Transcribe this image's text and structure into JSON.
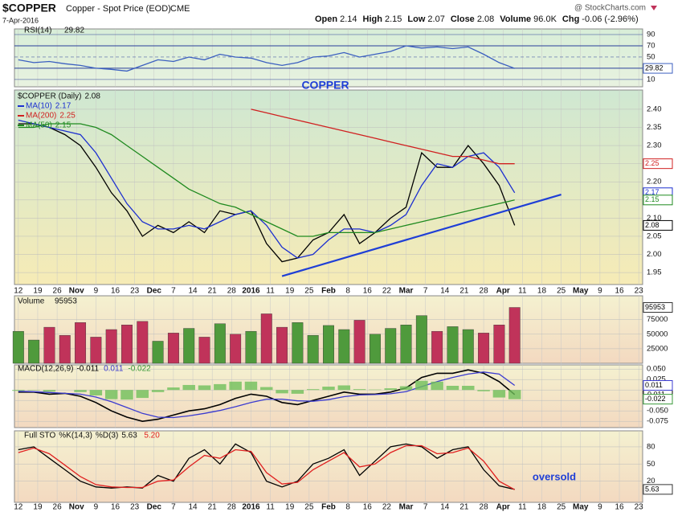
{
  "header": {
    "symbol": "$COPPER",
    "description": "Copper - Spot Price (EOD)",
    "exchange": "CME",
    "source": "@ StockCharts.com",
    "date": "7-Apr-2016",
    "quote": [
      {
        "label": "Open",
        "value": "2.14"
      },
      {
        "label": "High",
        "value": "2.15"
      },
      {
        "label": "Low",
        "value": "2.07"
      },
      {
        "label": "Close",
        "value": "2.08"
      },
      {
        "label": "Volume",
        "value": "96.0K"
      },
      {
        "label": "Chg",
        "value": "-0.06 (-2.96%)"
      }
    ]
  },
  "x_axis": {
    "x": [
      0,
      4,
      8,
      12,
      16,
      20,
      24,
      28,
      32,
      36,
      40,
      44,
      48,
      52,
      56,
      60,
      64,
      68,
      72,
      76,
      80,
      84,
      88,
      92,
      96,
      100,
      104,
      108,
      112,
      116,
      120,
      124,
      128
    ],
    "xlim": [
      -1,
      161
    ],
    "xticks": [
      {
        "value": 0,
        "label": "12"
      },
      {
        "value": 5,
        "label": "19"
      },
      {
        "value": 10,
        "label": "26"
      },
      {
        "value": 15,
        "label": "Nov"
      },
      {
        "value": 20,
        "label": "9"
      },
      {
        "value": 25,
        "label": "16"
      },
      {
        "value": 30,
        "label": "23"
      },
      {
        "value": 35,
        "label": "Dec"
      },
      {
        "value": 40,
        "label": "7"
      },
      {
        "value": 45,
        "label": "14"
      },
      {
        "value": 50,
        "label": "21"
      },
      {
        "value": 55,
        "label": "28"
      },
      {
        "value": 60,
        "label": "2016"
      },
      {
        "value": 65,
        "label": "11"
      },
      {
        "value": 70,
        "label": "19"
      },
      {
        "value": 75,
        "label": "25"
      },
      {
        "value": 80,
        "label": "Feb"
      },
      {
        "value": 85,
        "label": "8"
      },
      {
        "value": 90,
        "label": "16"
      },
      {
        "value": 95,
        "label": "22"
      },
      {
        "value": 100,
        "label": "Mar"
      },
      {
        "value": 105,
        "label": "7"
      },
      {
        "value": 110,
        "label": "14"
      },
      {
        "value": 115,
        "label": "21"
      },
      {
        "value": 120,
        "label": "28"
      },
      {
        "value": 125,
        "label": "Apr"
      },
      {
        "value": 130,
        "label": "11"
      },
      {
        "value": 135,
        "label": "18"
      },
      {
        "value": 140,
        "label": "25"
      },
      {
        "value": 145,
        "label": "May"
      },
      {
        "value": 150,
        "label": "9"
      },
      {
        "value": 155,
        "label": "16"
      },
      {
        "value": 160,
        "label": "23"
      }
    ]
  },
  "chart_data": [
    {
      "type": "line",
      "ylim": [
        -3,
        100
      ],
      "yticks": [
        90,
        70,
        50,
        30,
        10
      ],
      "series": [
        {
          "name": "RSI(14)",
          "color": "#3b5fc0",
          "values": [
            45,
            40,
            42,
            38,
            35,
            30,
            28,
            25,
            35,
            45,
            42,
            50,
            45,
            55,
            50,
            48,
            40,
            35,
            40,
            50,
            52,
            58,
            50,
            55,
            60,
            70,
            66,
            68,
            65,
            68,
            55,
            40,
            29.82
          ]
        }
      ]
    },
    {
      "type": "line",
      "title": "COPPER",
      "ylim": [
        1.917,
        2.453
      ],
      "yticks": [
        {
          "value": 1.95,
          "label": "1.95"
        },
        {
          "value": 2,
          "label": "2.00"
        },
        {
          "value": 2.05,
          "label": "2.05"
        },
        {
          "value": 2.1,
          "label": "2.10"
        },
        {
          "value": 2.15,
          "label": "2.15"
        },
        {
          "value": 2.2,
          "label": "2.20"
        },
        {
          "value": 2.25,
          "label": "2.25"
        },
        {
          "value": 2.3,
          "label": "2.30"
        },
        {
          "value": 2.35,
          "label": "2.35"
        },
        {
          "value": 2.4,
          "label": "2.40"
        }
      ],
      "series": [
        {
          "name": "$COPPER (Daily)",
          "color": "#000000",
          "values": [
            2.36,
            2.36,
            2.35,
            2.33,
            2.3,
            2.24,
            2.17,
            2.12,
            2.05,
            2.08,
            2.06,
            2.09,
            2.06,
            2.12,
            2.11,
            2.12,
            2.03,
            1.98,
            1.99,
            2.04,
            2.06,
            2.11,
            2.03,
            2.06,
            2.1,
            2.13,
            2.28,
            2.24,
            2.24,
            2.3,
            2.25,
            2.19,
            2.08
          ]
        },
        {
          "name": "MA(10)",
          "color": "#1c2fd0",
          "values": [
            2.37,
            2.36,
            2.35,
            2.34,
            2.33,
            2.28,
            2.21,
            2.14,
            2.09,
            2.07,
            2.07,
            2.08,
            2.07,
            2.09,
            2.11,
            2.12,
            2.08,
            2.02,
            1.99,
            2,
            2.04,
            2.07,
            2.07,
            2.06,
            2.08,
            2.11,
            2.19,
            2.25,
            2.24,
            2.27,
            2.28,
            2.24,
            2.17
          ]
        },
        {
          "name": "MA(200)",
          "color": "#d02020",
          "values": [
            null,
            null,
            null,
            null,
            null,
            null,
            null,
            null,
            null,
            null,
            null,
            null,
            null,
            null,
            null,
            2.4,
            2.39,
            2.38,
            2.37,
            2.36,
            2.35,
            2.34,
            2.33,
            2.32,
            2.31,
            2.3,
            2.29,
            2.28,
            2.27,
            2.27,
            2.26,
            2.25,
            2.25
          ]
        },
        {
          "name": "MA(50)",
          "color": "#1f8a1f",
          "values": [
            2.35,
            2.35,
            2.36,
            2.36,
            2.36,
            2.35,
            2.33,
            2.3,
            2.27,
            2.24,
            2.21,
            2.18,
            2.16,
            2.14,
            2.13,
            2.11,
            2.09,
            2.07,
            2.05,
            2.05,
            2.06,
            2.06,
            2.06,
            2.06,
            2.07,
            2.08,
            2.09,
            2.1,
            2.11,
            2.12,
            2.13,
            2.14,
            2.15
          ]
        }
      ],
      "trendline": {
        "x": [
          68,
          140
        ],
        "values": [
          1.94,
          2.165
        ],
        "color": "#1f3fd6"
      }
    },
    {
      "type": "bar",
      "ylim": [
        0,
        116000
      ],
      "yticks": [
        25000,
        50000,
        75000
      ],
      "series": [
        {
          "name": "Volume",
          "color": "#4f9a3c",
          "down_color": "#c0335a",
          "values": [
            55000,
            40000,
            62000,
            48000,
            70000,
            45000,
            58000,
            66000,
            72000,
            38000,
            52000,
            60000,
            45000,
            68000,
            50000,
            55000,
            85000,
            62000,
            70000,
            48000,
            65000,
            58000,
            74000,
            50000,
            60000,
            66000,
            82000,
            55000,
            63000,
            58000,
            52000,
            66000,
            95953
          ]
        }
      ]
    },
    {
      "type": "line",
      "ylim": [
        -0.09,
        0.06
      ],
      "yticks": [
        {
          "value": 0.05,
          "label": "0.050"
        },
        {
          "value": 0.025,
          "label": "0.025"
        },
        {
          "value": 0,
          "label": "0.000"
        },
        {
          "value": -0.025,
          "label": "-0.025"
        },
        {
          "value": -0.05,
          "label": "-0.050"
        },
        {
          "value": -0.075,
          "label": "-0.075"
        }
      ],
      "series": [
        {
          "name": "MACD(12,26,9)",
          "color": "#000000",
          "values": [
            -0.005,
            -0.005,
            -0.01,
            -0.008,
            -0.015,
            -0.03,
            -0.05,
            -0.065,
            -0.075,
            -0.07,
            -0.06,
            -0.05,
            -0.045,
            -0.035,
            -0.02,
            -0.01,
            -0.015,
            -0.03,
            -0.035,
            -0.025,
            -0.015,
            -0.005,
            -0.01,
            -0.01,
            -0.005,
            0.005,
            0.03,
            0.04,
            0.04,
            0.048,
            0.04,
            0.02,
            -0.011
          ]
        },
        {
          "color": "#3b3bd0",
          "values": [
            -0.003,
            -0.004,
            -0.006,
            -0.008,
            -0.01,
            -0.017,
            -0.028,
            -0.042,
            -0.056,
            -0.065,
            -0.066,
            -0.062,
            -0.056,
            -0.049,
            -0.04,
            -0.03,
            -0.022,
            -0.022,
            -0.026,
            -0.027,
            -0.023,
            -0.016,
            -0.012,
            -0.011,
            -0.009,
            -0.004,
            0.008,
            0.02,
            0.03,
            0.038,
            0.043,
            0.038,
            0.011
          ]
        },
        {
          "color": "#6fbf5a",
          "bars": true,
          "values": [
            -0.002,
            -0.001,
            -0.004,
            0,
            -0.005,
            -0.013,
            -0.022,
            -0.023,
            -0.019,
            -0.005,
            0.006,
            0.012,
            0.011,
            0.014,
            0.02,
            0.02,
            0.007,
            -0.008,
            -0.009,
            0.002,
            0.008,
            0.011,
            0.002,
            0.001,
            0.004,
            0.009,
            0.022,
            0.02,
            0.01,
            0.01,
            -0.003,
            -0.018,
            -0.022
          ]
        }
      ]
    },
    {
      "type": "line",
      "label": "Full STO",
      "annotation": "oversold",
      "ylim": [
        -17,
        108
      ],
      "yticks": [
        80,
        50,
        20
      ],
      "series": [
        {
          "name": "%K(14,3)",
          "color": "#000000",
          "values": [
            75,
            80,
            60,
            40,
            20,
            10,
            8,
            10,
            8,
            30,
            20,
            60,
            75,
            50,
            85,
            70,
            20,
            10,
            20,
            50,
            60,
            75,
            30,
            55,
            80,
            85,
            80,
            60,
            75,
            80,
            40,
            12,
            5.63
          ]
        },
        {
          "name": "%D(3)",
          "color": "#e02020",
          "values": [
            70,
            78,
            68,
            48,
            28,
            14,
            10,
            9,
            9,
            20,
            22,
            45,
            65,
            60,
            75,
            72,
            35,
            15,
            18,
            40,
            55,
            70,
            45,
            50,
            70,
            82,
            82,
            68,
            70,
            78,
            55,
            20,
            5.2
          ],
          "value_labels": [
            null,
            null,
            null,
            null,
            null,
            null,
            null,
            null,
            null,
            null,
            null,
            null,
            null,
            null,
            null,
            null,
            null,
            null,
            null,
            null,
            null,
            null,
            null,
            null,
            null,
            null,
            null,
            null,
            null,
            null,
            null,
            null,
            "5.20"
          ]
        }
      ]
    }
  ]
}
